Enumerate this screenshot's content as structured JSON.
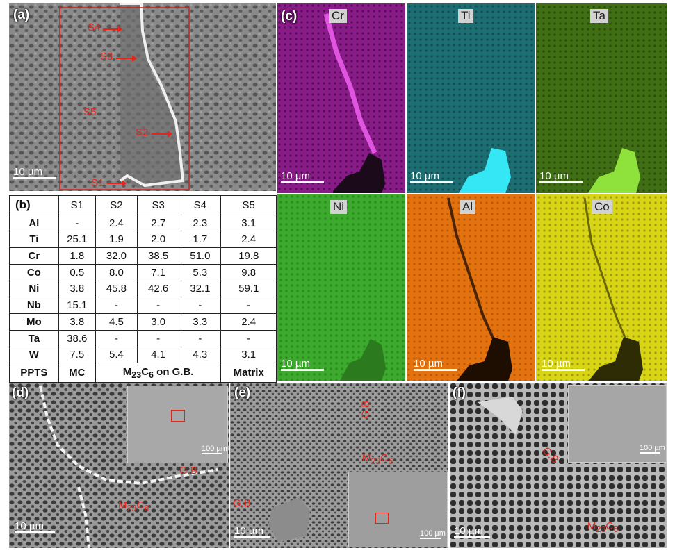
{
  "panel_labels": {
    "a": "(a)",
    "b": "(b)",
    "c": "(c)",
    "d": "(d)",
    "e": "(e)",
    "f": "(f)"
  },
  "scale_10": "10 µm",
  "scale_100": "100 µm",
  "panel_a": {
    "s1": "S1",
    "s2": "S2",
    "s3": "S3",
    "s4": "S4",
    "s5": "S5"
  },
  "maps": [
    {
      "el": "Cr",
      "color": "#8c1c8c"
    },
    {
      "el": "Ti",
      "color": "#1c6f74"
    },
    {
      "el": "Ta",
      "color": "#3c6a12"
    },
    {
      "el": "Ni",
      "color": "#3aa62a"
    },
    {
      "el": "Al",
      "color": "#e0700e"
    },
    {
      "el": "Co",
      "color": "#c8c412"
    }
  ],
  "table": {
    "header": [
      "(b)",
      "S1",
      "S2",
      "S3",
      "S4",
      "S5"
    ],
    "rows": [
      [
        "Al",
        "-",
        "2.4",
        "2.7",
        "2.3",
        "3.1"
      ],
      [
        "Ti",
        "25.1",
        "1.9",
        "2.0",
        "1.7",
        "2.4"
      ],
      [
        "Cr",
        "1.8",
        "32.0",
        "38.5",
        "51.0",
        "19.8"
      ],
      [
        "Co",
        "0.5",
        "8.0",
        "7.1",
        "5.3",
        "9.8"
      ],
      [
        "Ni",
        "3.8",
        "45.8",
        "42.6",
        "32.1",
        "59.1"
      ],
      [
        "Nb",
        "15.1",
        "-",
        "-",
        "-",
        "-"
      ],
      [
        "Mo",
        "3.8",
        "4.5",
        "3.0",
        "3.3",
        "2.4"
      ],
      [
        "Ta",
        "38.6",
        "-",
        "-",
        "-",
        "-"
      ],
      [
        "W",
        "7.5",
        "5.4",
        "4.1",
        "4.3",
        "3.1"
      ]
    ],
    "footer": {
      "c1": "PPTS",
      "c2": "MC",
      "c3_pre": "M",
      "c3_sub1": "23",
      "c3_mid": "C",
      "c3_sub2": "6",
      "c3_post": " on G.B.",
      "c4": "Matrix"
    }
  },
  "ann": {
    "gb": "G.B",
    "m": "M",
    "m_sub1": "23",
    "c": "C",
    "m_sub2": "6"
  }
}
